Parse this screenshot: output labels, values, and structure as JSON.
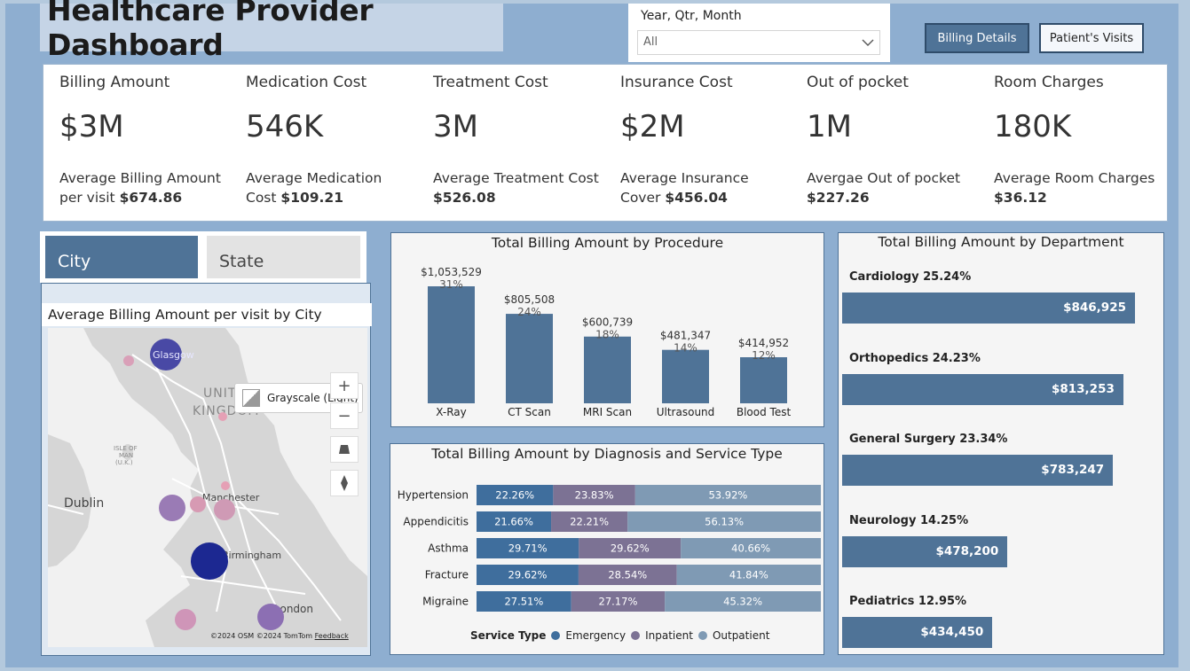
{
  "header": {
    "title": "Healthcare Provider Dashboard"
  },
  "slicer": {
    "label": "Year, Qtr, Month",
    "value": "All"
  },
  "nav": {
    "billing_details": "Billing Details",
    "patients_visits": "Patient's Visits"
  },
  "kpis": [
    {
      "title": "Billing Amount",
      "value": "$3M",
      "sub_text": "Average Billing Amount per visit",
      "sub_value": "$674.86"
    },
    {
      "title": "Medication Cost",
      "value": "546K",
      "sub_text": "Average Medication Cost",
      "sub_value": "$109.21"
    },
    {
      "title": "Treatment Cost",
      "value": "3M",
      "sub_text": "Average Treatment Cost",
      "sub_value": "$526.08"
    },
    {
      "title": "Insurance Cost",
      "value": "$2M",
      "sub_text": "Average Insurance Cover",
      "sub_value": "$456.04"
    },
    {
      "title": "Out of pocket",
      "value": "1M",
      "sub_text": "Avergae Out of pocket",
      "sub_value": "$227.26"
    },
    {
      "title": "Room Charges",
      "value": "180K",
      "sub_text": "Average Room Charges",
      "sub_value": "$36.12"
    }
  ],
  "tabs": {
    "city": "City",
    "state": "State"
  },
  "map": {
    "title": "Average Billing Amount per visit by City",
    "style_label": "Grayscale (Light)",
    "places": {
      "glasgow": "Glasgow",
      "uk1": "UNITED",
      "uk2": "KINGDOM",
      "isle1": "ISLE OF",
      "isle2": "MAN",
      "isle3": "(U.K.)",
      "dublin": "Dublin",
      "manchester": "Manchester",
      "birmingham": "Birmingham",
      "london": "London"
    },
    "zoom_in": "+",
    "zoom_out": "−",
    "footer_osm": "©2024 OSM",
    "footer_tomtom": "©2024 TomTom",
    "footer_feedback": "Feedback",
    "colors": {
      "land": "#d6d6d6",
      "water": "#f1f1f1",
      "road": "#ffffff"
    }
  },
  "procedure_chart": {
    "title": "Total Billing Amount by Procedure",
    "chart_data": {
      "type": "bar",
      "categories": [
        "X-Ray",
        "CT Scan",
        "MRI Scan",
        "Ultrasound",
        "Blood Test"
      ],
      "values": [
        1053529,
        805508,
        600739,
        481347,
        414952
      ],
      "value_labels": [
        "$1,053,529",
        "$805,508",
        "$600,739",
        "$481,347",
        "$414,952"
      ],
      "pct_labels": [
        "31%",
        "24%",
        "18%",
        "14%",
        "12%"
      ],
      "color": "#4f7397"
    }
  },
  "diagnosis_chart": {
    "title": "Total Billing Amount by Diagnosis and Service Type",
    "chart_data": {
      "type": "bar",
      "stacked": "100%",
      "orientation": "horizontal",
      "categories": [
        "Hypertension",
        "Appendicitis",
        "Asthma",
        "Fracture",
        "Migraine"
      ],
      "series": [
        {
          "name": "Emergency",
          "values": [
            22.26,
            21.66,
            29.71,
            29.62,
            27.51
          ],
          "labels": [
            "22.26%",
            "21.66%",
            "29.71%",
            "29.62%",
            "27.51%"
          ],
          "color": "#3f6e9d"
        },
        {
          "name": "Inpatient",
          "values": [
            23.83,
            22.21,
            29.62,
            28.54,
            27.17
          ],
          "labels": [
            "23.83%",
            "22.21%",
            "29.62%",
            "28.54%",
            "27.17%"
          ],
          "color": "#7c7294"
        },
        {
          "name": "Outpatient",
          "values": [
            53.92,
            56.13,
            40.66,
            41.84,
            45.32
          ],
          "labels": [
            "53.92%",
            "56.13%",
            "40.66%",
            "41.84%",
            "45.32%"
          ],
          "color": "#7f9ab4"
        }
      ],
      "legend_title": "Service Type",
      "legend_position": "bottom"
    }
  },
  "department_chart": {
    "title": "Total Billing Amount by Department",
    "chart_data": {
      "type": "bar",
      "orientation": "horizontal",
      "categories": [
        "Cardiology 25.24%",
        "Orthopedics 24.23%",
        "General Surgery 23.34%",
        "Neurology 14.25%",
        "Pediatrics 12.95%"
      ],
      "values": [
        846925,
        813253,
        783247,
        478200,
        434450
      ],
      "value_labels": [
        "$846,925",
        "$813,253",
        "$783,247",
        "$478,200",
        "$434,450"
      ],
      "color": "#4f7397"
    }
  }
}
